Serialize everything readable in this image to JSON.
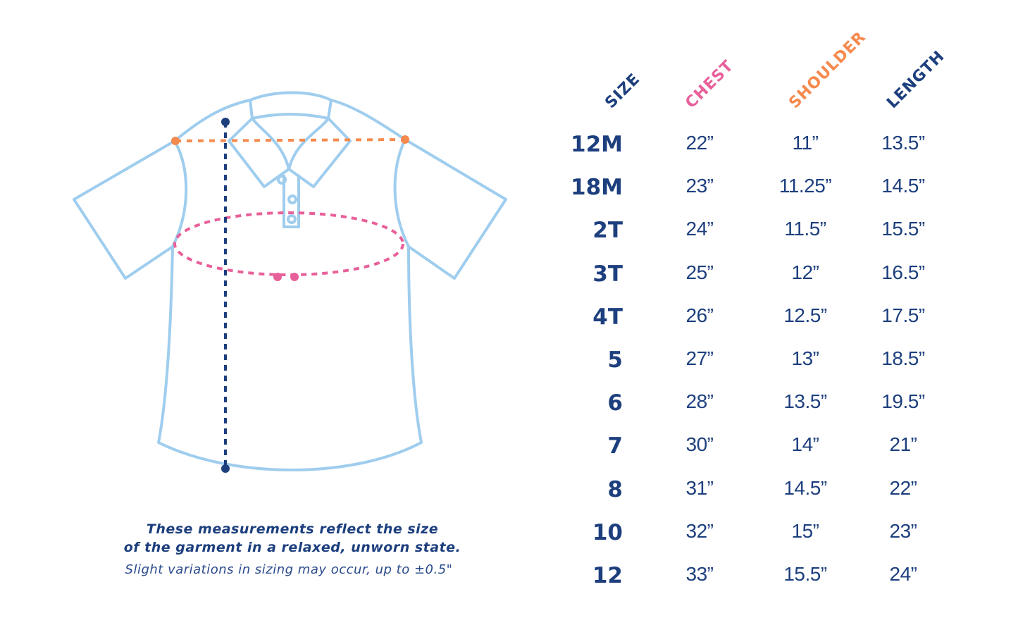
{
  "headers": {
    "size": "SIZE",
    "chest": "CHEST",
    "shoulder": "SHOULDER",
    "length": "LENGTH"
  },
  "colors": {
    "navy": "#1d3f7e",
    "chest_pink": "#e8609a",
    "shoulder_orange": "#f58a4e",
    "shirt_outline": "#9fcdee"
  },
  "rows": [
    {
      "size": "12M",
      "chest": "22”",
      "shoulder": "11”",
      "length": "13.5”"
    },
    {
      "size": "18M",
      "chest": "23”",
      "shoulder": "11.25”",
      "length": "14.5”"
    },
    {
      "size": "2T",
      "chest": "24”",
      "shoulder": "11.5”",
      "length": "15.5”"
    },
    {
      "size": "3T",
      "chest": "25”",
      "shoulder": "12”",
      "length": "16.5”"
    },
    {
      "size": "4T",
      "chest": "26”",
      "shoulder": "12.5”",
      "length": "17.5”"
    },
    {
      "size": "5",
      "chest": "27”",
      "shoulder": "13”",
      "length": "18.5”"
    },
    {
      "size": "6",
      "chest": "28”",
      "shoulder": "13.5”",
      "length": "19.5”"
    },
    {
      "size": "7",
      "chest": "30”",
      "shoulder": "14”",
      "length": "21”"
    },
    {
      "size": "8",
      "chest": "31”",
      "shoulder": "14.5”",
      "length": "22”"
    },
    {
      "size": "10",
      "chest": "32”",
      "shoulder": "15”",
      "length": "23”"
    },
    {
      "size": "12",
      "chest": "33”",
      "shoulder": "15.5”",
      "length": "24”"
    }
  ],
  "notes": {
    "line1": "These measurements reflect the size",
    "line2": "of the garment in a relaxed, unworn state.",
    "disclaimer": "Slight variations in sizing may occur, up to ±0.5\""
  }
}
